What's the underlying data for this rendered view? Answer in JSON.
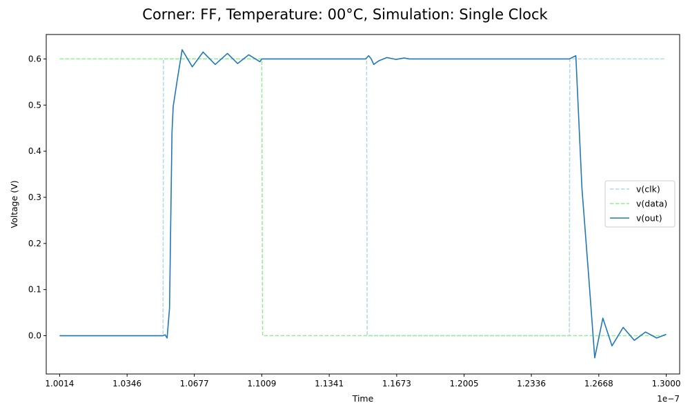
{
  "chart_data": {
    "type": "line",
    "title": "Corner: FF, Temperature: 00°C, Simulation: Single Clock",
    "xlabel": "Time",
    "ylabel": "Voltage (V)",
    "x_offset_text": "1e−7",
    "xlim": [
      0.9948,
      1.3066
    ],
    "ylim": [
      -0.083,
      0.653
    ],
    "x_ticks": [
      1.0014,
      1.0346,
      1.0677,
      1.1009,
      1.1341,
      1.1673,
      1.2005,
      1.2336,
      1.2668,
      1.3
    ],
    "x_tick_labels": [
      "1.0014",
      "1.0346",
      "1.0677",
      "1.1009",
      "1.1341",
      "1.1673",
      "1.2005",
      "1.2336",
      "1.2668",
      "1.3000"
    ],
    "y_ticks": [
      0.0,
      0.1,
      0.2,
      0.3,
      0.4,
      0.5,
      0.6
    ],
    "y_tick_labels": [
      "0.0",
      "0.1",
      "0.2",
      "0.3",
      "0.4",
      "0.5",
      "0.6"
    ],
    "grid": false,
    "legend_position": "center-right",
    "series": [
      {
        "name": "v(clk)",
        "color": "#add8e6",
        "dash": "dashed",
        "points": [
          [
            1.0014,
            0.0
          ],
          [
            1.0523,
            0.0
          ],
          [
            1.0525,
            0.6
          ],
          [
            1.1525,
            0.6
          ],
          [
            1.1528,
            0.0
          ],
          [
            1.2523,
            0.0
          ],
          [
            1.2525,
            0.6
          ],
          [
            1.3,
            0.6
          ]
        ]
      },
      {
        "name": "v(data)",
        "color": "#90ee90",
        "dash": "dashed",
        "points": [
          [
            1.0014,
            0.6
          ],
          [
            1.1009,
            0.6
          ],
          [
            1.1013,
            0.0
          ],
          [
            1.3,
            0.0
          ]
        ]
      },
      {
        "name": "v(out)",
        "color": "#1f77b4",
        "dash": "solid",
        "points": [
          [
            1.0014,
            0.0
          ],
          [
            1.01,
            0.0
          ],
          [
            1.03,
            0.0
          ],
          [
            1.05,
            0.0
          ],
          [
            1.0523,
            0.0
          ],
          [
            1.0533,
            0.002
          ],
          [
            1.0543,
            -0.005
          ],
          [
            1.0555,
            0.06
          ],
          [
            1.0567,
            0.44
          ],
          [
            1.0573,
            0.497
          ],
          [
            1.0595,
            0.56
          ],
          [
            1.0617,
            0.62
          ],
          [
            1.0667,
            0.583
          ],
          [
            1.072,
            0.615
          ],
          [
            1.078,
            0.588
          ],
          [
            1.084,
            0.612
          ],
          [
            1.089,
            0.59
          ],
          [
            1.0945,
            0.609
          ],
          [
            1.1,
            0.594
          ],
          [
            1.1009,
            0.6
          ],
          [
            1.105,
            0.6
          ],
          [
            1.12,
            0.6
          ],
          [
            1.14,
            0.6
          ],
          [
            1.152,
            0.6
          ],
          [
            1.1535,
            0.607
          ],
          [
            1.1548,
            0.6
          ],
          [
            1.156,
            0.588
          ],
          [
            1.1585,
            0.596
          ],
          [
            1.1625,
            0.603
          ],
          [
            1.167,
            0.599
          ],
          [
            1.171,
            0.602
          ],
          [
            1.1735,
            0.6
          ],
          [
            1.2,
            0.6
          ],
          [
            1.23,
            0.6
          ],
          [
            1.2523,
            0.6
          ],
          [
            1.2555,
            0.607
          ],
          [
            1.2585,
            0.32
          ],
          [
            1.2618,
            0.13
          ],
          [
            1.2648,
            -0.048
          ],
          [
            1.2688,
            0.038
          ],
          [
            1.2733,
            -0.022
          ],
          [
            1.2788,
            0.018
          ],
          [
            1.2843,
            -0.01
          ],
          [
            1.2898,
            0.008
          ],
          [
            1.2953,
            -0.005
          ],
          [
            1.3,
            0.003
          ]
        ]
      }
    ]
  }
}
